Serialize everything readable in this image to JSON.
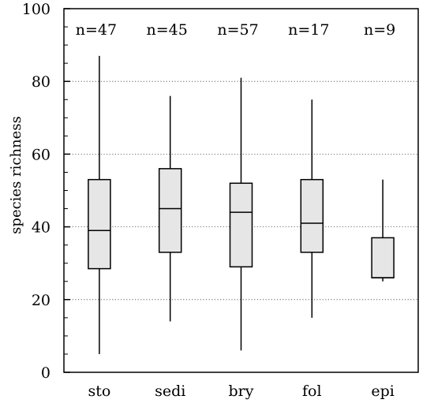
{
  "chart_data": {
    "type": "box",
    "ylabel": "species richness",
    "ylim": [
      0,
      100
    ],
    "yticks": [
      "0",
      "20",
      "40",
      "60",
      "80",
      "100"
    ],
    "y_minor_step": 5,
    "grid": "dotted horizontal at 20, 40, 60, 80",
    "categories": [
      "sto",
      "sedi",
      "bry",
      "fol",
      "epi"
    ],
    "n_labels": [
      "n=47",
      "n=45",
      "n=57",
      "n=17",
      "n=9"
    ],
    "box_color": "#e6e6e6",
    "boxes": [
      {
        "min": 5,
        "q1": 28.5,
        "median": 39,
        "q3": 53,
        "max": 87
      },
      {
        "min": 14,
        "q1": 33,
        "median": 45,
        "q3": 56,
        "max": 76
      },
      {
        "min": 6,
        "q1": 29,
        "median": 44,
        "q3": 52,
        "max": 81
      },
      {
        "min": 15,
        "q1": 33,
        "median": 41,
        "q3": 53,
        "max": 75
      },
      {
        "min": 25,
        "q1": 26,
        "median": 26,
        "q3": 37,
        "max": 53
      }
    ]
  }
}
